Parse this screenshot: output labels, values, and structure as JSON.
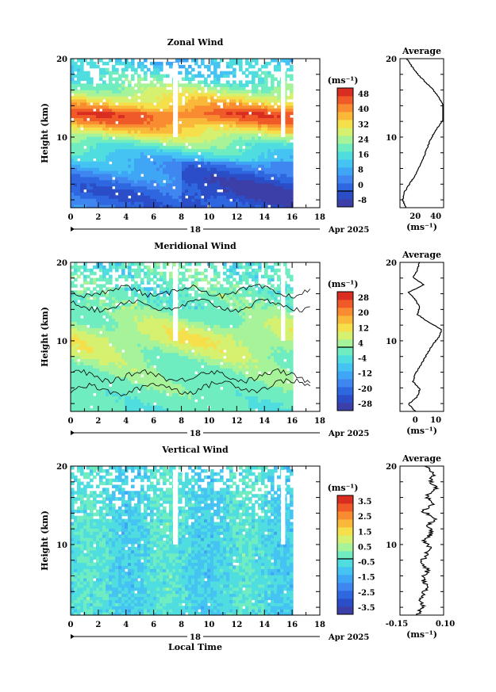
{
  "chart_data": [
    {
      "type": "heatmap",
      "title": "Zonal Wind",
      "ylabel": "Height (km)",
      "xlim": [
        0,
        18
      ],
      "ylim": [
        1,
        20
      ],
      "x_ticks": [
        0,
        2,
        4,
        6,
        8,
        10,
        12,
        14,
        16,
        18
      ],
      "y_ticks": [
        10,
        20
      ],
      "date_label": "18",
      "month_label": "Apr 2025",
      "colorbar": {
        "unit": "(ms⁻¹)",
        "levels": [
          -8,
          -4,
          0,
          4,
          8,
          12,
          16,
          20,
          24,
          28,
          32,
          36,
          40,
          44,
          48,
          52
        ],
        "tick_labels": [
          "48",
          "40",
          "32",
          "24",
          "16",
          "8",
          "0",
          "-8"
        ],
        "colors": [
          "#3d3fa8",
          "#2b4ec8",
          "#2f67e0",
          "#3f86f0",
          "#3fa6f5",
          "#45c3f2",
          "#4fdde0",
          "#6fedc0",
          "#a6f39a",
          "#d6f06f",
          "#f5df4a",
          "#f9b83a",
          "#f98c30",
          "#f05a28",
          "#d92d22"
        ]
      },
      "profile_values": [
        6,
        3,
        4,
        9,
        14,
        18,
        22,
        25,
        28,
        31,
        35,
        40,
        46,
        48,
        44,
        39,
        33,
        25,
        18,
        12,
        7
      ],
      "gradient_stops": [
        {
          "h": 1,
          "v": 4
        },
        {
          "h": 3,
          "v": 2
        },
        {
          "h": 5,
          "v": 6
        },
        {
          "h": 7,
          "v": 12
        },
        {
          "h": 9,
          "v": 22
        },
        {
          "h": 10.5,
          "v": 32
        },
        {
          "h": 12,
          "v": 42
        },
        {
          "h": 13,
          "v": 46
        },
        {
          "h": 14,
          "v": 38
        },
        {
          "h": 15.5,
          "v": 30
        },
        {
          "h": 17,
          "v": 22
        },
        {
          "h": 18.5,
          "v": 16
        },
        {
          "h": 20,
          "v": 14
        }
      ]
    },
    {
      "type": "heatmap",
      "title": "Meridional Wind",
      "ylabel": "Height (km)",
      "xlim": [
        0,
        18
      ],
      "ylim": [
        1,
        20
      ],
      "x_ticks": [
        0,
        2,
        4,
        6,
        8,
        10,
        12,
        14,
        16,
        18
      ],
      "y_ticks": [
        10,
        20
      ],
      "date_label": "18",
      "month_label": "Apr 2025",
      "colorbar": {
        "unit": "(ms⁻¹)",
        "levels": [
          -32,
          -28,
          -24,
          -20,
          -16,
          -12,
          -8,
          -4,
          4,
          8,
          12,
          16,
          20,
          24,
          28,
          32
        ],
        "tick_labels": [
          "28",
          "20",
          "12",
          "4",
          "-4",
          "-12",
          "-20",
          "-28"
        ],
        "colors": [
          "#3d3fa8",
          "#2b4ec8",
          "#2f67e0",
          "#3f86f0",
          "#3fa6f5",
          "#45c3f2",
          "#4fdde0",
          "#6fedc0",
          "#a6f39a",
          "#d6f06f",
          "#f5df4a",
          "#f9b83a",
          "#f98c30",
          "#f05a28",
          "#d92d22"
        ]
      },
      "profile_values": [
        1,
        -2,
        2,
        3,
        0,
        1,
        3,
        5,
        7,
        9,
        12,
        13,
        7,
        2,
        3,
        1,
        -2,
        5,
        0,
        2,
        3
      ],
      "gradient_stops": [
        {
          "h": 1,
          "v": -2
        },
        {
          "h": 3,
          "v": 0
        },
        {
          "h": 5,
          "v": 2
        },
        {
          "h": 7,
          "v": 4
        },
        {
          "h": 9,
          "v": 8
        },
        {
          "h": 10.5,
          "v": 10
        },
        {
          "h": 12,
          "v": 7
        },
        {
          "h": 13.5,
          "v": 3
        },
        {
          "h": 15,
          "v": 0
        },
        {
          "h": 16.5,
          "v": -2
        },
        {
          "h": 18,
          "v": 0
        },
        {
          "h": 20,
          "v": -3
        }
      ]
    },
    {
      "type": "heatmap",
      "title": "Vertical Wind",
      "ylabel": "Height (km)",
      "xlabel": "Local Time",
      "xlim": [
        0,
        18
      ],
      "ylim": [
        1,
        20
      ],
      "x_ticks": [
        0,
        2,
        4,
        6,
        8,
        10,
        12,
        14,
        16,
        18
      ],
      "y_ticks": [
        10,
        20
      ],
      "date_label": "18",
      "month_label": "Apr 2025",
      "colorbar": {
        "unit": "(ms⁻¹)",
        "levels": [
          -3.5,
          -3.0,
          -2.5,
          -2.0,
          -1.5,
          -1.0,
          -0.5,
          0,
          0.5,
          1.0,
          1.5,
          2.0,
          2.5,
          3.0,
          3.5,
          4.0
        ],
        "tick_labels": [
          "3.5",
          "2.5",
          "1.5",
          "0.5",
          "-0.5",
          "-1.5",
          "-2.5",
          "-3.5"
        ],
        "colors": [
          "#3d3fa8",
          "#2b4ec8",
          "#2f67e0",
          "#3f86f0",
          "#3fa6f5",
          "#45c3f2",
          "#4fdde0",
          "#6fedc0",
          "#a6f39a",
          "#d6f06f",
          "#f5df4a",
          "#f9b83a",
          "#f98c30",
          "#f05a28",
          "#d92d22"
        ]
      },
      "profile_values": [
        -0.05,
        -0.02,
        -0.03,
        -0.01,
        0.0,
        -0.02,
        0.01,
        -0.03,
        0.0,
        0.02,
        -0.01,
        0.03,
        0.01,
        0.05,
        -0.02,
        0.04,
        0.0,
        0.06,
        0.02,
        0.05,
        0.0
      ],
      "gradient_stops": [
        {
          "h": 1,
          "v": -0.3
        },
        {
          "h": 20,
          "v": -0.3
        }
      ]
    }
  ],
  "profiles": {
    "title": "Average",
    "unit": "(ms⁻¹)",
    "panels": [
      {
        "xlim": [
          0,
          45
        ],
        "ticks": [
          "20",
          "40"
        ],
        "ylim": [
          1,
          20
        ],
        "y_ticks": [
          10,
          20
        ]
      },
      {
        "xlim": [
          -6,
          14
        ],
        "ticks": [
          "0",
          "10"
        ],
        "ylim": [
          1,
          20
        ],
        "y_ticks": [
          10,
          20
        ]
      },
      {
        "xlim": [
          -0.15,
          0.1
        ],
        "ticks": [
          "-0.15",
          "0.10"
        ],
        "ylim": [
          1,
          20
        ],
        "y_ticks": [
          10,
          20
        ]
      }
    ]
  }
}
